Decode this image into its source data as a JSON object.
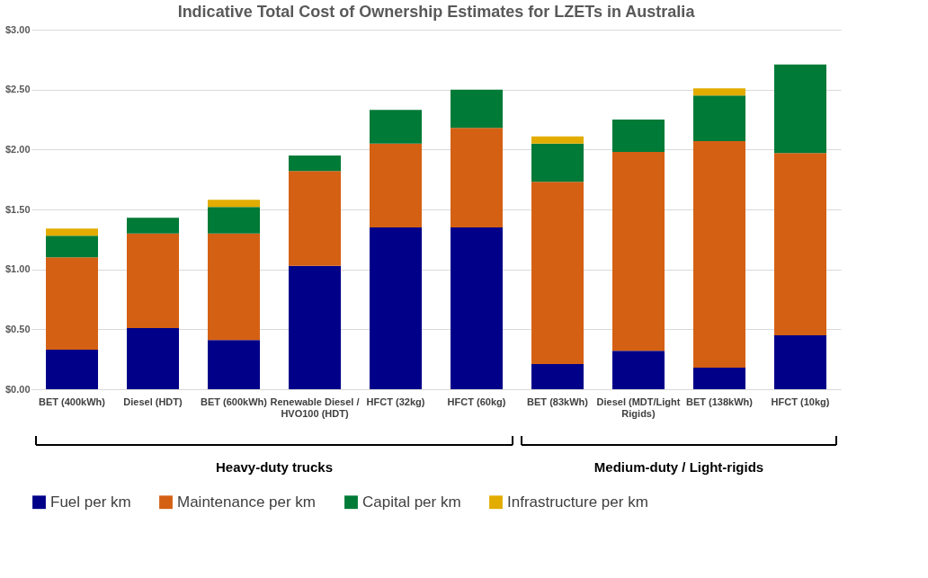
{
  "chart_data": {
    "type": "bar",
    "title": "Indicative Total Cost of Ownership Estimates for LZETs in Australia",
    "categories": [
      "BET (400kWh)",
      "Diesel (HDT)",
      "BET (600kWh)",
      "Renewable Diesel / HVO100 (HDT)",
      "HFCT (32kg)",
      "HFCT (60kg)",
      "BET (83kWh)",
      "Diesel (MDT/Light Rigids)",
      "BET (138kWh)",
      "HFCT (10kg)"
    ],
    "stacked": true,
    "series": [
      {
        "name": "Fuel per km",
        "color": "#000088",
        "values": [
          0.33,
          0.51,
          0.41,
          1.03,
          1.35,
          1.35,
          0.21,
          0.32,
          0.18,
          0.45
        ]
      },
      {
        "name": "Maintenance per km",
        "color": "#d46014",
        "values": [
          0.77,
          0.79,
          0.89,
          0.79,
          0.7,
          0.83,
          1.52,
          1.66,
          1.89,
          1.52
        ]
      },
      {
        "name": "Capital per km",
        "color": "#007a37",
        "values": [
          0.18,
          0.13,
          0.22,
          0.13,
          0.28,
          0.32,
          0.32,
          0.27,
          0.38,
          0.74
        ]
      },
      {
        "name": "Infrastructure per km",
        "color": "#e2ac00",
        "values": [
          0.06,
          null,
          0.06,
          null,
          null,
          null,
          0.06,
          null,
          0.06,
          null
        ]
      }
    ],
    "ylim": [
      0,
      3
    ],
    "yticks": [
      {
        "value": 0,
        "label": "$0.00"
      },
      {
        "value": 0.5,
        "label": "$0.50"
      },
      {
        "value": 1,
        "label": "$1.00"
      },
      {
        "value": 1.5,
        "label": "$1.50"
      },
      {
        "value": 2,
        "label": "$2.00"
      },
      {
        "value": 2.5,
        "label": "$2.50"
      },
      {
        "value": 3,
        "label": "$3.00"
      }
    ],
    "grid": "y",
    "legend": "bottom",
    "annotations": [
      "Heavy-duty trucks",
      "Medium-duty / Light-rigids"
    ]
  }
}
